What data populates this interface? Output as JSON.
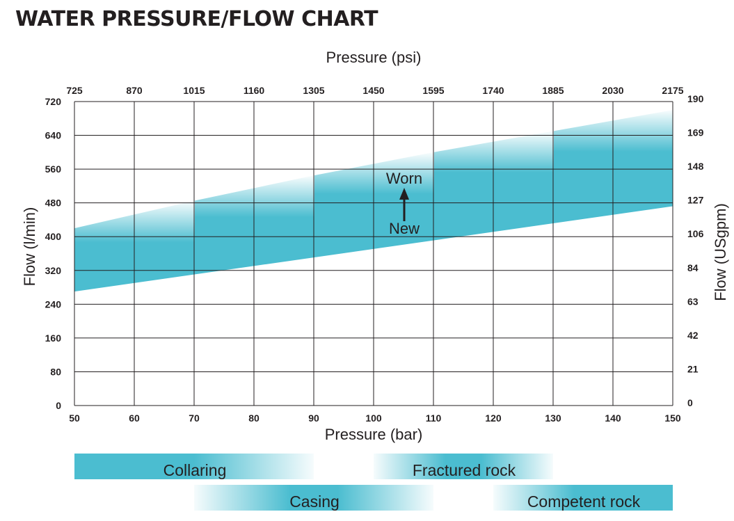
{
  "title": "WATER PRESSURE/FLOW CHART",
  "chart_data": {
    "type": "area",
    "xlabel": "Pressure (bar)",
    "x2label": "Pressure (psi)",
    "ylabel": "Flow (l/min)",
    "y2label": "Flow (USgpm)",
    "xlim": [
      50,
      150
    ],
    "ylim": [
      0,
      720
    ],
    "grid": true,
    "x_ticks": [
      50,
      60,
      70,
      80,
      90,
      100,
      110,
      120,
      130,
      140,
      150
    ],
    "x2_ticks": [
      "725",
      "870",
      "1015",
      "1160",
      "1305",
      "1450",
      "1595",
      "1740",
      "1885",
      "2030",
      "2175"
    ],
    "y_ticks": [
      0,
      80,
      160,
      240,
      320,
      400,
      480,
      560,
      640,
      720
    ],
    "y2_ticks": [
      "0",
      "21",
      "42",
      "63",
      "84",
      "106",
      "127",
      "148",
      "169",
      "190"
    ],
    "series": [
      {
        "name": "New",
        "x": [
          50,
          150
        ],
        "y": [
          270,
          472
        ]
      },
      {
        "name": "Worn",
        "x": [
          50,
          70,
          90,
          110,
          130,
          150
        ],
        "y": [
          420,
          485,
          545,
          600,
          650,
          700
        ]
      }
    ],
    "annotations": {
      "upper": "Worn",
      "lower": "New"
    },
    "color": "#4bbdd0",
    "ranges": [
      {
        "label": "Collaring",
        "from": 50,
        "to": 90
      },
      {
        "label": "Fractured rock",
        "from": 100,
        "to": 130
      },
      {
        "label": "Casing",
        "from": 70,
        "to": 110
      },
      {
        "label": "Competent rock",
        "from": 120,
        "to": 150
      }
    ]
  }
}
